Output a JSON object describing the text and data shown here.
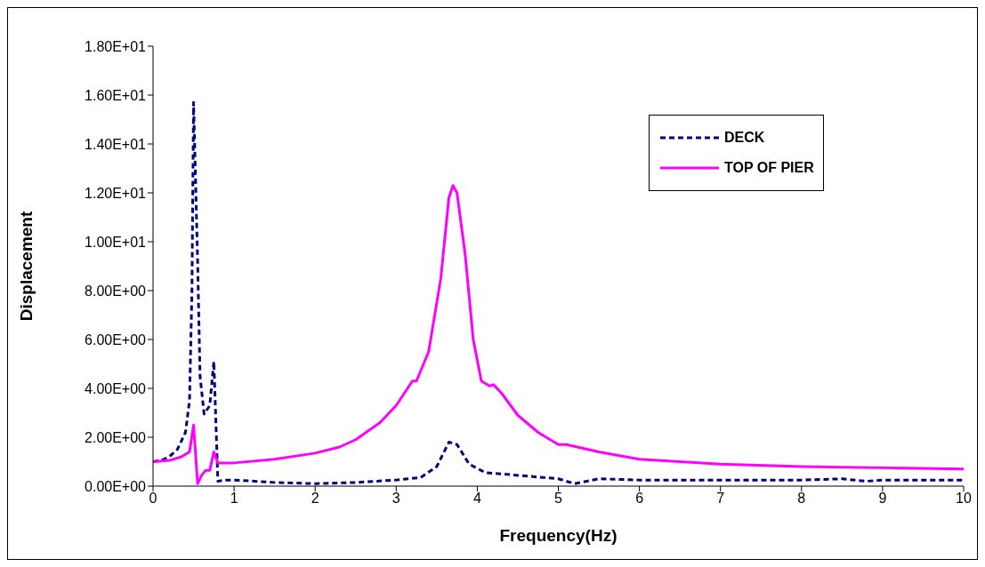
{
  "chart_data": {
    "type": "line",
    "xlabel": "Frequency(Hz)",
    "ylabel": "Displacement",
    "xlim": [
      0,
      10
    ],
    "xticks": [
      0,
      1,
      2,
      3,
      4,
      5,
      6,
      7,
      8,
      9,
      10
    ],
    "ylim": [
      0,
      18
    ],
    "yticks": [
      {
        "value": 0,
        "label": "0.00E+00"
      },
      {
        "value": 2,
        "label": "2.00E+00"
      },
      {
        "value": 4,
        "label": "4.00E+00"
      },
      {
        "value": 6,
        "label": "6.00E+00"
      },
      {
        "value": 8,
        "label": "8.00E+00"
      },
      {
        "value": 10,
        "label": "1.00E+01"
      },
      {
        "value": 12,
        "label": "1.20E+01"
      },
      {
        "value": 14,
        "label": "1.40E+01"
      },
      {
        "value": 16,
        "label": "1.60E+01"
      },
      {
        "value": 18,
        "label": "1.80E+01"
      }
    ],
    "grid": false,
    "legend": "top right",
    "marker": "none",
    "series": [
      {
        "name": "DECK",
        "color": "#000080",
        "line_style": "dashed",
        "x": [
          0,
          0.1,
          0.2,
          0.3,
          0.4,
          0.45,
          0.48,
          0.5,
          0.55,
          0.58,
          0.63,
          0.7,
          0.75,
          0.8,
          0.9,
          1,
          1.5,
          2,
          2.5,
          3,
          3.3,
          3.5,
          3.65,
          3.75,
          3.9,
          4.1,
          4.3,
          5,
          5.2,
          5.5,
          6,
          7,
          8,
          8.5,
          8.8,
          9,
          10
        ],
        "values": [
          1.0,
          1.05,
          1.2,
          1.5,
          2.2,
          3.5,
          8,
          15.7,
          9.2,
          4.5,
          2.95,
          3.3,
          5.1,
          0.2,
          0.25,
          0.25,
          0.15,
          0.1,
          0.15,
          0.25,
          0.35,
          0.8,
          1.8,
          1.7,
          0.9,
          0.55,
          0.5,
          0.3,
          0.1,
          0.3,
          0.25,
          0.25,
          0.25,
          0.3,
          0.2,
          0.25,
          0.25
        ]
      },
      {
        "name": "TOP OF PIER",
        "color": "#ff00ff",
        "line_style": "solid",
        "x": [
          0,
          0.2,
          0.35,
          0.45,
          0.5,
          0.55,
          0.6,
          0.65,
          0.7,
          0.75,
          0.8,
          1,
          1.5,
          2,
          2.3,
          2.5,
          2.8,
          3,
          3.2,
          3.25,
          3.4,
          3.55,
          3.65,
          3.7,
          3.75,
          3.85,
          3.95,
          4.05,
          4.15,
          4.2,
          4.3,
          4.5,
          4.75,
          5,
          5.1,
          5.5,
          6,
          6.5,
          7,
          8,
          9,
          10
        ],
        "values": [
          1.0,
          1.05,
          1.2,
          1.4,
          2.5,
          0.1,
          0.45,
          0.65,
          0.65,
          1.4,
          0.95,
          0.95,
          1.1,
          1.35,
          1.6,
          1.9,
          2.6,
          3.3,
          4.3,
          4.3,
          5.5,
          8.5,
          11.8,
          12.3,
          12.0,
          9.5,
          6,
          4.3,
          4.1,
          4.15,
          3.8,
          2.9,
          2.2,
          1.7,
          1.7,
          1.4,
          1.1,
          1.0,
          0.9,
          0.8,
          0.75,
          0.7
        ]
      }
    ]
  }
}
